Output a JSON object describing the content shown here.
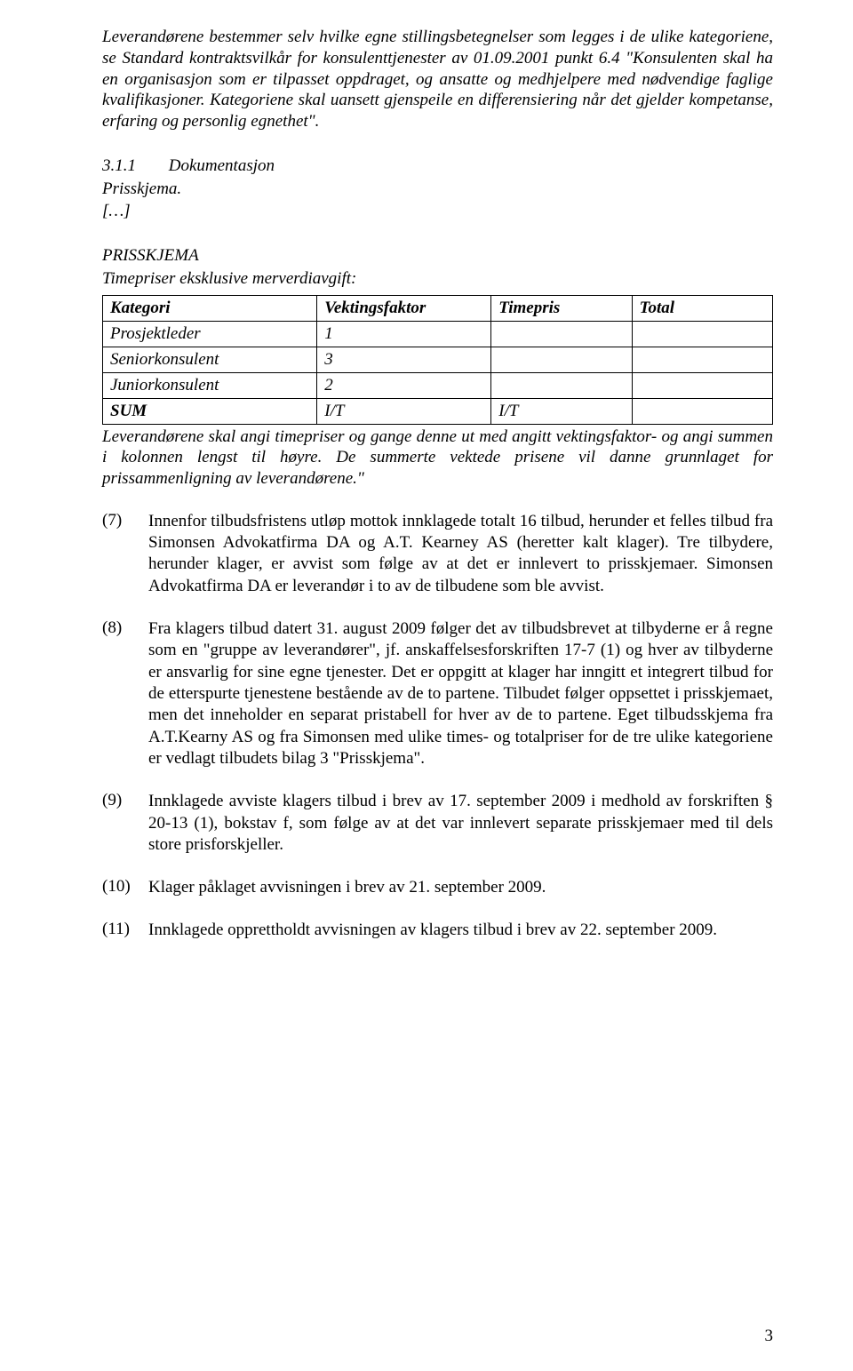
{
  "intro": {
    "p1": "Leverandørene bestemmer selv hvilke egne stillingsbetegnelser som legges i de ulike kategoriene, se Standard kontraktsvilkår for konsulenttjenester av 01.09.2001 punkt 6.4 \"Konsulenten skal ha en organisasjon som er tilpasset oppdraget, og ansatte og medhjelpere med nødvendige faglige kvalifikasjoner. Kategoriene skal uansett gjenspeile en differensiering når det gjelder kompetanse, erfaring og personlig egnethet\"."
  },
  "section": {
    "num": "3.1.1",
    "title": "Dokumentasjon",
    "line1": "Prisskjema.",
    "ellipsis": "[…]"
  },
  "tableblock": {
    "heading": "PRISSKJEMA",
    "intro": "Timepriser eksklusive merverdiavgift:",
    "headers": {
      "col1": "Kategori",
      "col2": "Vektingsfaktor",
      "col3": "Timepris",
      "col4": "Total"
    },
    "rows": [
      {
        "c1": "Prosjektleder",
        "c2": "1",
        "c3": "",
        "c4": ""
      },
      {
        "c1": "Seniorkonsulent",
        "c2": "3",
        "c3": "",
        "c4": ""
      },
      {
        "c1": "Juniorkonsulent",
        "c2": "2",
        "c3": "",
        "c4": ""
      },
      {
        "c1": "SUM",
        "c2": "I/T",
        "c3": "I/T",
        "c4": ""
      }
    ],
    "after": "Leverandørene skal angi timepriser og gange denne ut med angitt vektingsfaktor- og angi summen i kolonnen lengst til høyre. De summerte vektede prisene vil danne grunnlaget for prissammenligning av leverandørene.\""
  },
  "paras": {
    "n7": {
      "label": "(7)",
      "text": "Innenfor tilbudsfristens utløp mottok innklagede totalt 16 tilbud, herunder et felles tilbud fra Simonsen Advokatfirma DA og A.T. Kearney AS (heretter kalt klager). Tre tilbydere, herunder klager, er avvist som følge av at det er innlevert to prisskjemaer. Simonsen Advokatfirma DA er leverandør i to av de tilbudene som ble avvist."
    },
    "n8": {
      "label": "(8)",
      "text": "Fra klagers tilbud datert 31. august 2009 følger det av tilbudsbrevet at tilbyderne er å regne som en \"gruppe av leverandører\", jf. anskaffelsesforskriften 17-7 (1) og hver av tilbyderne er ansvarlig for sine egne tjenester. Det er oppgitt at klager har inngitt et integrert tilbud for de etterspurte tjenestene bestående av de to partene. Tilbudet følger oppsettet i prisskjemaet, men det inneholder en separat pristabell for hver av de to partene. Eget tilbudsskjema fra A.T.Kearny AS og fra Simonsen med ulike times- og totalpriser for de tre ulike kategoriene er vedlagt tilbudets bilag 3 \"Prisskjema\"."
    },
    "n9": {
      "label": "(9)",
      "text": "Innklagede avviste klagers tilbud i brev av 17. september 2009 i medhold av forskriften § 20-13 (1), bokstav f, som følge av at det var innlevert separate prisskjemaer med til dels store prisforskjeller."
    },
    "n10": {
      "label": "(10)",
      "text": "Klager påklaget avvisningen i brev av 21. september 2009."
    },
    "n11": {
      "label": "(11)",
      "text": "Innklagede opprettholdt avvisningen av klagers tilbud i brev av 22. september 2009."
    }
  },
  "pagenum": "3"
}
